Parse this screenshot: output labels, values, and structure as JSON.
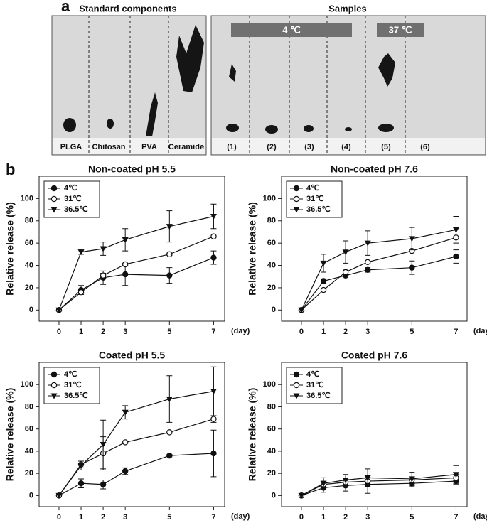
{
  "panel_a": {
    "label": "a",
    "left_title": "Standard components",
    "right_title": "Samples",
    "band_4": "4 ℃",
    "band_37": "37 ℃",
    "left_lanes": [
      "PLGA",
      "Chitosan",
      "PVA",
      "Ceramide"
    ],
    "right_lanes": [
      "(1)",
      "(2)",
      "(3)",
      "(4)",
      "(5)",
      "(6)"
    ]
  },
  "panel_b": {
    "label": "b"
  },
  "chart_data": [
    {
      "type": "line",
      "title": "Non-coated pH 5.5",
      "y_label": "Relative release (%)",
      "x_unit": "(day)",
      "x": [
        0,
        1,
        2,
        3,
        5,
        7
      ],
      "xlim": [
        -0.9,
        7.5
      ],
      "xticks": [
        0,
        1,
        2,
        3,
        5,
        7
      ],
      "ylim": [
        -10,
        120
      ],
      "yticks": [
        0,
        20,
        40,
        60,
        80,
        100
      ],
      "legend": "upper left",
      "series": [
        {
          "name": "4℃",
          "color": "#111111",
          "marker": "circle",
          "values": [
            0,
            18,
            29,
            32,
            31,
            47
          ],
          "errors": [
            0,
            4,
            6,
            10,
            7,
            6
          ]
        },
        {
          "name": "31℃",
          "color": "#111111",
          "marker": "open-circle",
          "values": [
            0,
            16,
            31,
            41,
            50,
            66
          ],
          "errors": [
            0,
            2,
            2,
            1,
            1,
            1
          ]
        },
        {
          "name": "36.5℃",
          "color": "#111111",
          "marker": "triangle-down",
          "values": [
            0,
            52,
            55,
            63,
            75,
            84
          ],
          "errors": [
            0,
            2,
            6,
            10,
            14,
            11
          ]
        }
      ]
    },
    {
      "type": "line",
      "title": "Non-coated pH 7.6",
      "y_label": "Relative release (%)",
      "x_unit": "(day)",
      "x": [
        0,
        1,
        2,
        3,
        5,
        7
      ],
      "xlim": [
        -0.9,
        7.5
      ],
      "xticks": [
        0,
        1,
        2,
        3,
        5,
        7
      ],
      "ylim": [
        -10,
        120
      ],
      "yticks": [
        0,
        20,
        40,
        60,
        80,
        100
      ],
      "legend": "upper left",
      "series": [
        {
          "name": "4℃",
          "color": "#111111",
          "marker": "circle",
          "values": [
            0,
            26,
            31,
            36,
            38,
            48
          ],
          "errors": [
            0,
            2,
            3,
            2,
            6,
            6
          ]
        },
        {
          "name": "31℃",
          "color": "#111111",
          "marker": "open-circle",
          "values": [
            0,
            18,
            34,
            43,
            53,
            65
          ],
          "errors": [
            0,
            1,
            2,
            1,
            1,
            1
          ]
        },
        {
          "name": "36.5℃",
          "color": "#111111",
          "marker": "triangle-down",
          "values": [
            0,
            42,
            52,
            60,
            64,
            72
          ],
          "errors": [
            0,
            8,
            10,
            11,
            10,
            12
          ]
        }
      ]
    },
    {
      "type": "line",
      "title": "Coated pH 5.5",
      "y_label": "Relative release (%)",
      "x_unit": "(day)",
      "x": [
        0,
        1,
        2,
        3,
        5,
        7
      ],
      "xlim": [
        -0.9,
        7.5
      ],
      "xticks": [
        0,
        1,
        2,
        3,
        5,
        7
      ],
      "ylim": [
        -10,
        120
      ],
      "yticks": [
        0,
        20,
        40,
        60,
        80,
        100
      ],
      "legend": "upper left",
      "series": [
        {
          "name": "4℃",
          "color": "#111111",
          "marker": "circle",
          "values": [
            0,
            11,
            10,
            22,
            36,
            38
          ],
          "errors": [
            0,
            4,
            4,
            3,
            1,
            21
          ]
        },
        {
          "name": "31℃",
          "color": "#111111",
          "marker": "open-circle",
          "values": [
            0,
            28,
            38,
            48,
            57,
            69
          ],
          "errors": [
            0,
            3,
            15,
            1,
            1,
            3
          ]
        },
        {
          "name": "36.5℃",
          "color": "#111111",
          "marker": "triangle-down",
          "values": [
            0,
            27,
            46,
            75,
            87,
            94
          ],
          "errors": [
            0,
            4,
            22,
            6,
            21,
            22
          ]
        }
      ]
    },
    {
      "type": "line",
      "title": "Coated pH 7.6",
      "y_label": "Relative release (%)",
      "x_unit": "(day)",
      "x": [
        0,
        1,
        2,
        3,
        5,
        7
      ],
      "xlim": [
        -0.9,
        7.5
      ],
      "xticks": [
        0,
        1,
        2,
        3,
        5,
        7
      ],
      "ylim": [
        -10,
        120
      ],
      "yticks": [
        0,
        20,
        40,
        60,
        80,
        100
      ],
      "legend": "upper left",
      "series": [
        {
          "name": "4℃",
          "color": "#111111",
          "marker": "circle",
          "values": [
            0,
            7,
            9,
            10,
            11,
            13
          ],
          "errors": [
            0,
            4,
            5,
            8,
            3,
            3
          ]
        },
        {
          "name": "31℃",
          "color": "#111111",
          "marker": "open-circle",
          "values": [
            0,
            10,
            12,
            13,
            14,
            16
          ],
          "errors": [
            0,
            3,
            3,
            3,
            3,
            3
          ]
        },
        {
          "name": "36.5℃",
          "color": "#111111",
          "marker": "triangle-down",
          "values": [
            0,
            11,
            14,
            16,
            15,
            19
          ],
          "errors": [
            0,
            5,
            5,
            8,
            6,
            8
          ]
        }
      ]
    }
  ]
}
